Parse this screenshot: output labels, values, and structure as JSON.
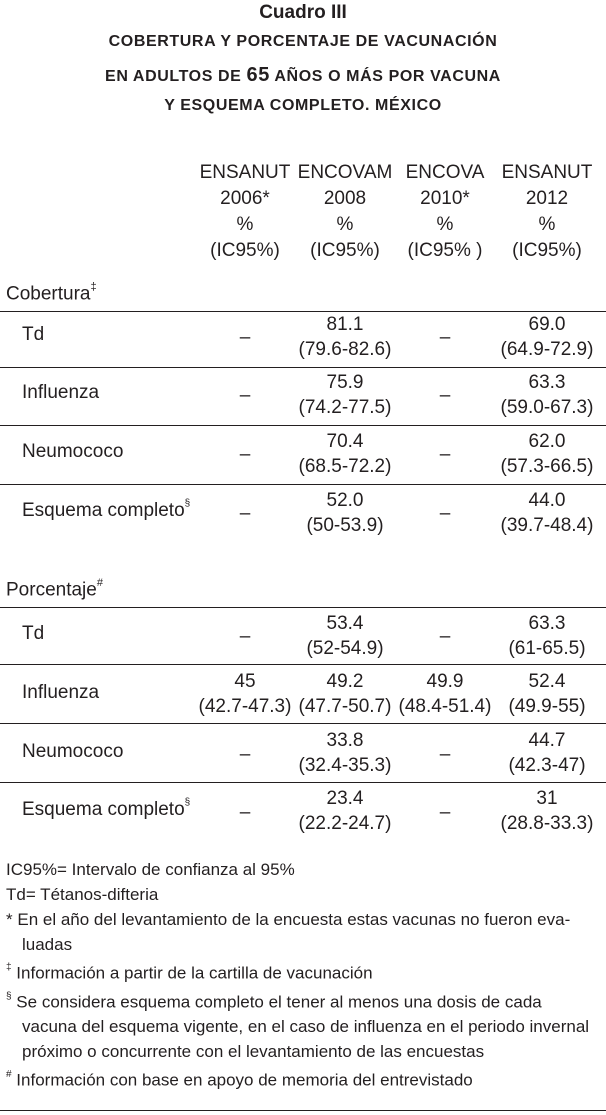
{
  "caption": {
    "label": "Cuadro III",
    "title_line1": "Cobertura y porcentaje de vacunación",
    "title_line2_pre": "en adultos de ",
    "title_line2_num": "65",
    "title_line2_post": " años o más por vacuna",
    "title_line3": "y esquema completo. México"
  },
  "columns": [
    {
      "survey": "ENSANUT",
      "year": "2006*",
      "unit": "%",
      "ci": "(IC95%)"
    },
    {
      "survey": "ENCOVAM",
      "year": "2008",
      "unit": "%",
      "ci": "(IC95%)"
    },
    {
      "survey": "ENCOVA",
      "year": "2010*",
      "unit": "%",
      "ci": "(IC95% )"
    },
    {
      "survey": "ENSANUT",
      "year": "2012",
      "unit": "%",
      "ci": "(IC95%)"
    }
  ],
  "sections": [
    {
      "label": "Cobertura",
      "mark": "‡",
      "rows": [
        {
          "label": "Td",
          "mark": "",
          "cells": [
            {
              "value": "–",
              "ci": ""
            },
            {
              "value": "81.1",
              "ci": "(79.6-82.6)"
            },
            {
              "value": "–",
              "ci": ""
            },
            {
              "value": "69.0",
              "ci": "(64.9-72.9)"
            }
          ]
        },
        {
          "label": "Influenza",
          "mark": "",
          "cells": [
            {
              "value": "–",
              "ci": ""
            },
            {
              "value": "75.9",
              "ci": "(74.2-77.5)"
            },
            {
              "value": "–",
              "ci": ""
            },
            {
              "value": "63.3",
              "ci": "(59.0-67.3)"
            }
          ]
        },
        {
          "label": "Neumococo",
          "mark": "",
          "cells": [
            {
              "value": "–",
              "ci": ""
            },
            {
              "value": "70.4",
              "ci": "(68.5-72.2)"
            },
            {
              "value": "–",
              "ci": ""
            },
            {
              "value": "62.0",
              "ci": "(57.3-66.5)"
            }
          ]
        },
        {
          "label": "Esquema completo",
          "mark": "§",
          "cells": [
            {
              "value": "–",
              "ci": ""
            },
            {
              "value": "52.0",
              "ci": "(50-53.9)"
            },
            {
              "value": "–",
              "ci": ""
            },
            {
              "value": "44.0",
              "ci": "(39.7-48.4)"
            }
          ]
        }
      ]
    },
    {
      "label": "Porcentaje",
      "mark": "#",
      "rows": [
        {
          "label": "Td",
          "mark": "",
          "cells": [
            {
              "value": "–",
              "ci": ""
            },
            {
              "value": "53.4",
              "ci": "(52-54.9)"
            },
            {
              "value": "–",
              "ci": ""
            },
            {
              "value": "63.3",
              "ci": "(61-65.5)"
            }
          ]
        },
        {
          "label": "Influenza",
          "mark": "",
          "cells": [
            {
              "value": "45",
              "ci": "(42.7-47.3)"
            },
            {
              "value": "49.2",
              "ci": "(47.7-50.7)"
            },
            {
              "value": "49.9",
              "ci": "(48.4-51.4)"
            },
            {
              "value": "52.4",
              "ci": "(49.9-55)"
            }
          ]
        },
        {
          "label": "Neumococo",
          "mark": "",
          "cells": [
            {
              "value": "–",
              "ci": ""
            },
            {
              "value": "33.8",
              "ci": "(32.4-35.3)"
            },
            {
              "value": "–",
              "ci": ""
            },
            {
              "value": "44.7",
              "ci": "(42.3-47)"
            }
          ]
        },
        {
          "label": "Esquema completo",
          "mark": "§",
          "cells": [
            {
              "value": "–",
              "ci": ""
            },
            {
              "value": "23.4",
              "ci": "(22.2-24.7)"
            },
            {
              "value": "–",
              "ci": ""
            },
            {
              "value": "31",
              "ci": "(28.8-33.3)"
            }
          ]
        }
      ]
    }
  ],
  "notes": {
    "ic": "IC95%= Intervalo de confianza al 95%",
    "td": "Td= Tétanos-difteria",
    "n1_mark": "*",
    "n1_line1": "En el año del levantamiento de la encuesta estas vacunas no fueron eva-",
    "n1_line2": "luadas",
    "n2_mark": "‡",
    "n2_text": "Información a partir de la cartilla de vacunación",
    "n3_mark": "§",
    "n3_line1": "Se considera esquema completo el tener al menos una dosis de cada",
    "n3_line2": "vacuna del esquema vigente, en el caso de influenza en el periodo invernal",
    "n3_line3": "próximo o concurrente con el levantamiento de las encuestas",
    "n4_mark": "#",
    "n4_text": "Información con base en apoyo de memoria del entrevistado"
  }
}
